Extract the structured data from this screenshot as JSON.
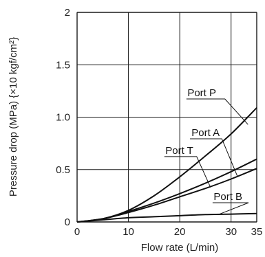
{
  "chart_data": {
    "type": "line",
    "xlabel": "Flow rate (L/min)",
    "ylabel": "Pressure drop (MPa) {×10 kgf/cm²}",
    "xlim": [
      0,
      35
    ],
    "ylim": [
      0,
      2
    ],
    "x_ticks": [
      "0",
      "10",
      "20",
      "30",
      "35"
    ],
    "y_ticks": [
      "0",
      "0.5",
      "1.0",
      "1.5",
      "2"
    ],
    "grid": true,
    "series": [
      {
        "name": "Port P",
        "x": [
          0,
          5,
          10,
          15,
          20,
          25,
          30,
          35
        ],
        "values": [
          0,
          0.03,
          0.11,
          0.25,
          0.43,
          0.63,
          0.84,
          1.09
        ]
      },
      {
        "name": "Port A",
        "x": [
          0,
          5,
          10,
          15,
          20,
          25,
          30,
          35
        ],
        "values": [
          0,
          0.03,
          0.1,
          0.18,
          0.27,
          0.37,
          0.48,
          0.6
        ]
      },
      {
        "name": "Port T",
        "x": [
          0,
          5,
          10,
          15,
          20,
          25,
          30,
          35
        ],
        "values": [
          0,
          0.03,
          0.09,
          0.16,
          0.24,
          0.32,
          0.41,
          0.51
        ]
      },
      {
        "name": "Port B",
        "x": [
          0,
          5,
          10,
          15,
          20,
          25,
          30,
          35
        ],
        "values": [
          0,
          0.02,
          0.04,
          0.05,
          0.06,
          0.07,
          0.075,
          0.08
        ]
      }
    ]
  }
}
